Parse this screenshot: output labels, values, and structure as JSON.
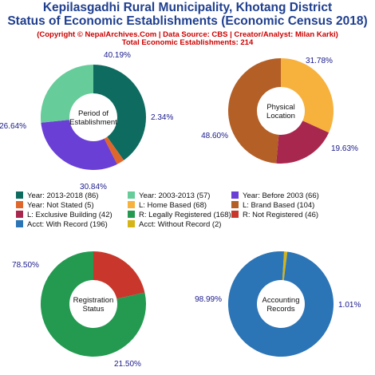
{
  "header": {
    "title_line1": "Kepilasgadhi Rural Municipality, Khotang District",
    "title_line2": "Status of Economic Establishments (Economic Census 2018)",
    "copyright": "(Copyright © NepalArchives.Com | Data Source: CBS | Creator/Analyst: Milan Karki)",
    "total": "Total Economic Establishments: 214"
  },
  "chart_data": [
    {
      "type": "pie",
      "center_label": [
        "Period of",
        "Establishment"
      ],
      "slices": [
        {
          "label": "Year: 2013-2018",
          "value": 86,
          "pct_label": "40.19%",
          "color": "#0e6b5f"
        },
        {
          "label": "Year: Not Stated",
          "value": 5,
          "pct_label": "2.34%",
          "color": "#e0672b"
        },
        {
          "label": "Year: Before 2003",
          "value": 66,
          "pct_label": "30.84%",
          "color": "#6a3fd6"
        },
        {
          "label": "Year: 2003-2013",
          "value": 57,
          "pct_label": "26.64%",
          "color": "#66cc99"
        }
      ]
    },
    {
      "type": "pie",
      "center_label": [
        "Physical",
        "Location"
      ],
      "slices": [
        {
          "label": "L: Home Based",
          "value": 68,
          "pct_label": "31.78%",
          "color": "#f7b13d"
        },
        {
          "label": "L: Exclusive Building",
          "value": 42,
          "pct_label": "19.63%",
          "color": "#a8274f"
        },
        {
          "label": "L: Brand Based",
          "value": 104,
          "pct_label": "48.60%",
          "color": "#b35f26"
        }
      ]
    },
    {
      "type": "pie",
      "center_label": [
        "Registration",
        "Status"
      ],
      "slices": [
        {
          "label": "R: Not Registered",
          "value": 46,
          "pct_label": "21.50%",
          "color": "#c9372c"
        },
        {
          "label": "R: Legally Registered",
          "value": 168,
          "pct_label": "78.50%",
          "color": "#239a50"
        }
      ]
    },
    {
      "type": "pie",
      "center_label": [
        "Accounting",
        "Records"
      ],
      "slices": [
        {
          "label": "Acct: Without Record",
          "value": 2,
          "pct_label": "1.01%",
          "color": "#d4b417"
        },
        {
          "label": "Acct: With Record",
          "value": 196,
          "pct_label": "98.99%",
          "color": "#2b74b6"
        }
      ]
    }
  ],
  "legend": [
    {
      "text": "Year: 2013-2018 (86)",
      "color": "#0e6b5f"
    },
    {
      "text": "Year: 2003-2013 (57)",
      "color": "#66cc99"
    },
    {
      "text": "Year: Before 2003 (66)",
      "color": "#6a3fd6"
    },
    {
      "text": "Year: Not Stated (5)",
      "color": "#e0672b"
    },
    {
      "text": "L: Home Based (68)",
      "color": "#f7b13d"
    },
    {
      "text": "L: Brand Based (104)",
      "color": "#b35f26"
    },
    {
      "text": "L: Exclusive Building (42)",
      "color": "#a8274f"
    },
    {
      "text": "R: Legally Registered (168)",
      "color": "#239a50"
    },
    {
      "text": "R: Not Registered (46)",
      "color": "#c9372c"
    },
    {
      "text": "Acct: With Record (196)",
      "color": "#2b74b6"
    },
    {
      "text": "Acct: Without Record (2)",
      "color": "#d4b417"
    }
  ]
}
